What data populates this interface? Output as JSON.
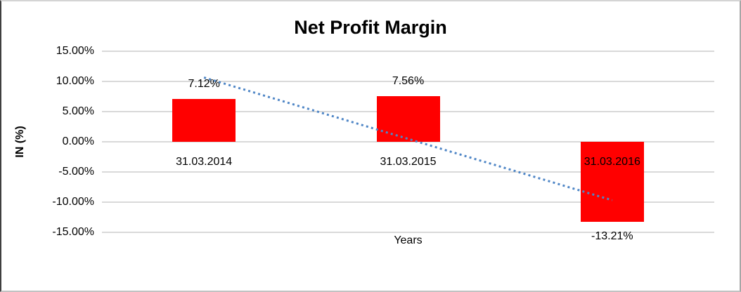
{
  "chart_data": {
    "type": "bar",
    "title": "Net Profit Margin",
    "xlabel": "Years",
    "ylabel": "IN (%)",
    "categories": [
      "31.03.2014",
      "31.03.2015",
      "31.03.2016"
    ],
    "values": [
      7.12,
      7.56,
      -13.21
    ],
    "data_labels": [
      "7.12%",
      "7.56%",
      "-13.21%"
    ],
    "yticks": [
      15,
      10,
      5,
      0,
      -5,
      -10,
      -15
    ],
    "ytick_labels": [
      "15.00%",
      "10.00%",
      "5.00%",
      "0.00%",
      "-5.00%",
      "-10.00%",
      "-15.00%"
    ],
    "ylim": [
      -15,
      15
    ],
    "grid": true,
    "legend": false,
    "bar_color": "#ff0000",
    "gridline_color": "#d9d9d9",
    "trendline": {
      "type": "linear",
      "style": "dotted",
      "color": "#4f86c6",
      "endpoint_values": [
        10.65,
        -9.68
      ]
    }
  }
}
